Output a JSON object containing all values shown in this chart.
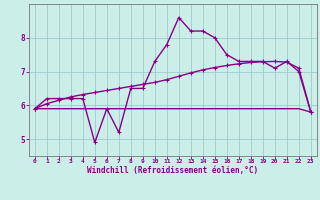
{
  "x": [
    0,
    1,
    2,
    3,
    4,
    5,
    6,
    7,
    8,
    9,
    10,
    11,
    12,
    13,
    14,
    15,
    16,
    17,
    18,
    19,
    20,
    21,
    22,
    23
  ],
  "line1": [
    5.9,
    6.2,
    6.2,
    6.2,
    6.2,
    4.9,
    5.9,
    5.2,
    6.5,
    6.5,
    7.3,
    7.8,
    8.6,
    8.2,
    8.2,
    8.0,
    7.5,
    7.3,
    7.3,
    7.3,
    7.1,
    7.3,
    7.0,
    5.8
  ],
  "line2": [
    5.9,
    6.05,
    6.15,
    6.25,
    6.32,
    6.38,
    6.44,
    6.5,
    6.56,
    6.62,
    6.68,
    6.76,
    6.86,
    6.96,
    7.05,
    7.12,
    7.18,
    7.23,
    7.27,
    7.29,
    7.3,
    7.28,
    7.1,
    5.8
  ],
  "line3": [
    5.9,
    5.9,
    5.9,
    5.9,
    5.9,
    5.9,
    5.9,
    5.9,
    5.9,
    5.9,
    5.9,
    5.9,
    5.9,
    5.9,
    5.9,
    5.9,
    5.9,
    5.9,
    5.9,
    5.9,
    5.9,
    5.9,
    5.9,
    5.8
  ],
  "line_color": "#880088",
  "bg_color": "#cceee8",
  "grid_color": "#99cccc",
  "xlabel": "Windchill (Refroidissement éolien,°C)",
  "ylim": [
    4.5,
    9.0
  ],
  "xlim": [
    -0.5,
    23.5
  ],
  "yticks": [
    5,
    6,
    7,
    8
  ],
  "xticks": [
    0,
    1,
    2,
    3,
    4,
    5,
    6,
    7,
    8,
    9,
    10,
    11,
    12,
    13,
    14,
    15,
    16,
    17,
    18,
    19,
    20,
    21,
    22,
    23
  ]
}
